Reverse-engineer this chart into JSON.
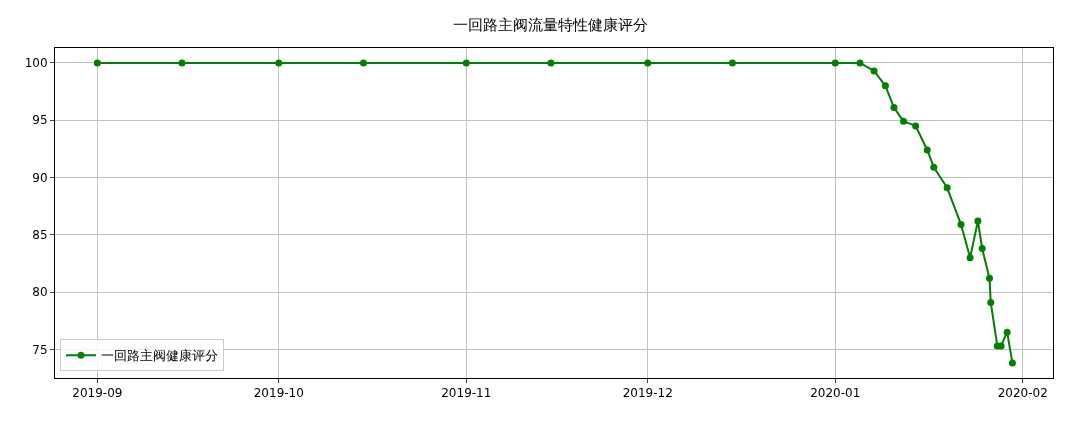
{
  "chart_data": {
    "type": "line",
    "title": "一回路主阀流量特性健康评分",
    "x": [
      "2019-09-01",
      "2019-09-15",
      "2019-10-01",
      "2019-10-15",
      "2019-11-01",
      "2019-11-15",
      "2019-12-01",
      "2019-12-15",
      "2020-01-01",
      "2020-01-05T02:00",
      "2020-01-07T10:00",
      "2020-01-09T07:00",
      "2020-01-10T17:00",
      "2020-01-12T07:00",
      "2020-01-14T07:00",
      "2020-01-16T05:00",
      "2020-01-17T07:00",
      "2020-01-19T12:00",
      "2020-01-21T19:00",
      "2020-01-23T07:00",
      "2020-01-24T14:00",
      "2020-01-25T07:00",
      "2020-01-26T12:00",
      "2020-01-26T17:00",
      "2020-01-27T19:00",
      "2020-01-28T10:00",
      "2020-01-29T10:00",
      "2020-01-30T07:00"
    ],
    "series": [
      {
        "name": "一回路主阀健康评分",
        "color": "#008000",
        "values": [
          100,
          100,
          100,
          100,
          100,
          100,
          100,
          100,
          100,
          100,
          99.3,
          98.0,
          96.1,
          94.9,
          94.5,
          92.4,
          90.9,
          89.1,
          85.9,
          83.0,
          86.2,
          83.8,
          81.2,
          79.1,
          75.3,
          75.3,
          76.5,
          73.8
        ]
      }
    ],
    "xlim": [
      "2019-08-25",
      "2020-02-06"
    ],
    "xticks": [
      {
        "value": "2019-09-01",
        "label": "2019-09"
      },
      {
        "value": "2019-10-01",
        "label": "2019-10"
      },
      {
        "value": "2019-11-01",
        "label": "2019-11"
      },
      {
        "value": "2019-12-01",
        "label": "2019-12"
      },
      {
        "value": "2020-01-01",
        "label": "2020-01"
      },
      {
        "value": "2020-02-01",
        "label": "2020-02"
      }
    ],
    "ylim": [
      72.5,
      101.3
    ],
    "yticks": [
      75,
      80,
      85,
      90,
      95,
      100
    ],
    "grid": true,
    "legend": "bottom left",
    "marker": "circle",
    "line_style": "solid"
  }
}
